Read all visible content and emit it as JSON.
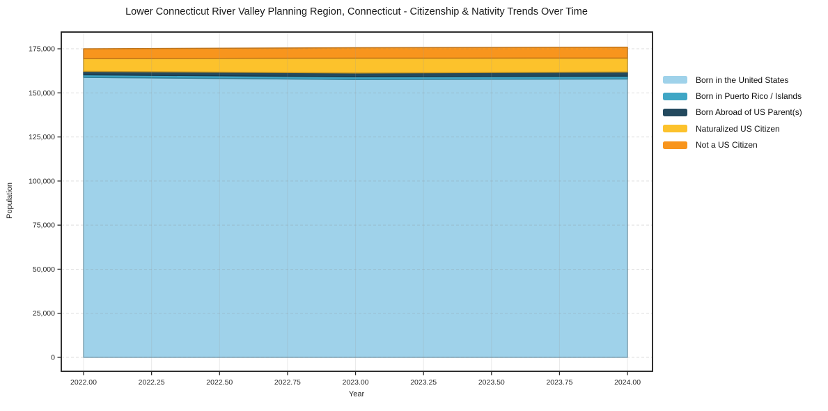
{
  "title": "Lower Connecticut River Valley Planning Region, Connecticut - Citizenship & Nativity Trends Over Time",
  "chart_data": {
    "type": "area",
    "stacked": true,
    "title": "Lower Connecticut River Valley Planning Region, Connecticut - Citizenship & Nativity Trends Over Time",
    "xlabel": "Year",
    "ylabel": "Population",
    "x": [
      2022,
      2023,
      2024
    ],
    "series": [
      {
        "name": "Born in the United States",
        "color": "#9FD2EA",
        "values": [
          158800,
          157600,
          157900
        ]
      },
      {
        "name": "Born in Puerto Rico / Islands",
        "color": "#3FA6C5",
        "values": [
          1450,
          1580,
          1580
        ]
      },
      {
        "name": "Born Abroad of US Parent(s)",
        "color": "#23495E",
        "values": [
          1950,
          2090,
          2350
        ]
      },
      {
        "name": "Naturalized US Citizen",
        "color": "#FCC22C",
        "values": [
          7250,
          8430,
          7900
        ]
      },
      {
        "name": "Not a US Citizen",
        "color": "#F8951D",
        "values": [
          5550,
          5930,
          6170
        ]
      }
    ],
    "totals": [
      175000,
      175630,
      175900
    ],
    "xlim": [
      2021.918,
      2024.092
    ],
    "ylim": [
      -7900,
      184500
    ],
    "x_ticks": {
      "values": [
        2022.0,
        2022.25,
        2022.5,
        2022.75,
        2023.0,
        2023.25,
        2023.5,
        2023.75,
        2024.0
      ],
      "labels": [
        "2022.00",
        "2022.25",
        "2022.50",
        "2022.75",
        "2023.00",
        "2023.25",
        "2023.50",
        "2023.75",
        "2024.00"
      ]
    },
    "y_ticks": {
      "values": [
        0,
        25000,
        50000,
        75000,
        100000,
        125000,
        150000,
        175000
      ],
      "labels": [
        "0",
        "25,000",
        "50,000",
        "75,000",
        "100,000",
        "125,000",
        "150,000",
        "175,000"
      ]
    },
    "grid": true,
    "legend_position": "center-right-outside"
  }
}
